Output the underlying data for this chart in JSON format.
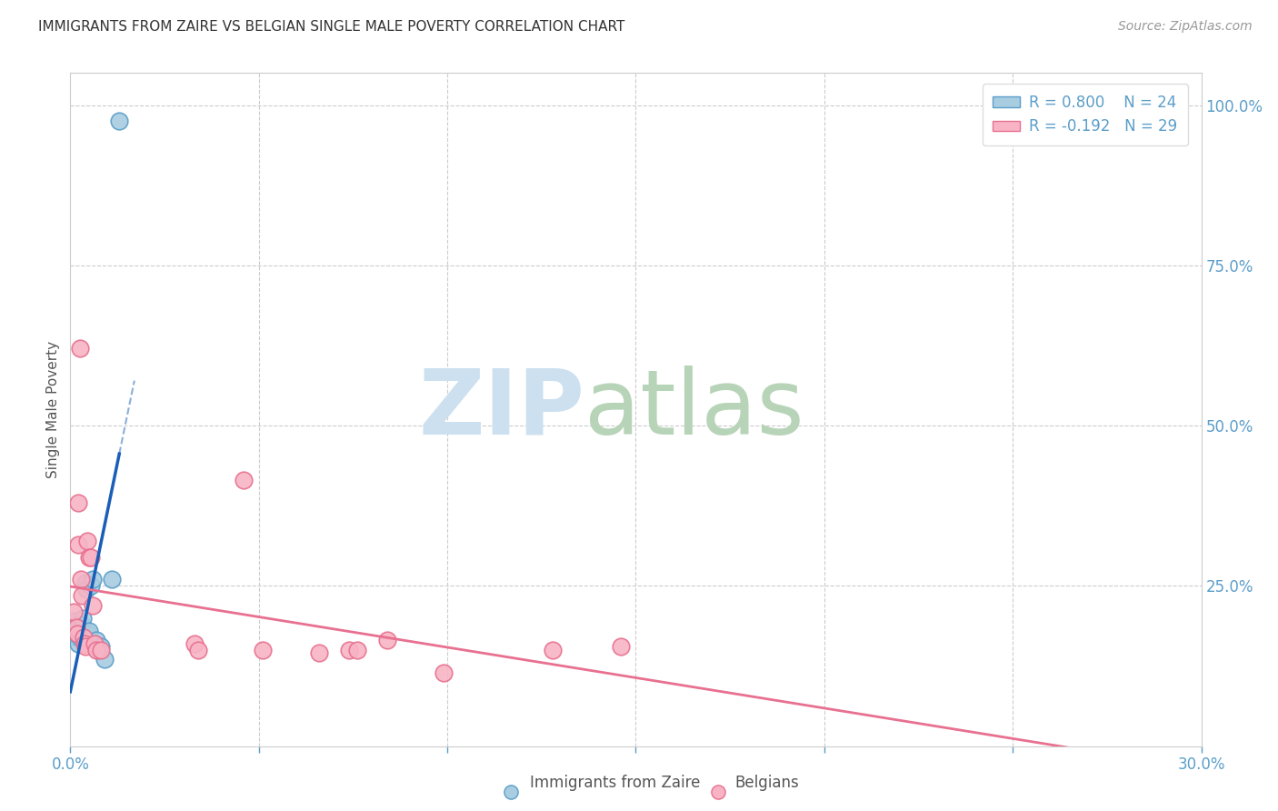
{
  "title": "IMMIGRANTS FROM ZAIRE VS BELGIAN SINGLE MALE POVERTY CORRELATION CHART",
  "source": "Source: ZipAtlas.com",
  "ylabel": "Single Male Poverty",
  "xlim": [
    0.0,
    0.3
  ],
  "ylim": [
    0.0,
    1.05
  ],
  "legend_label_zaire": "Immigrants from Zaire",
  "legend_label_belgian": "Belgians",
  "zaire_color": "#a8cce0",
  "zaire_edge": "#5b9ec9",
  "belgian_color": "#f8b4c4",
  "belgian_edge": "#e87090",
  "trendline_zaire_color": "#1a5eb8",
  "trendline_belgian_color": "#e87090",
  "background_color": "#ffffff",
  "grid_color": "#cccccc",
  "title_color": "#333333",
  "blue_tick_color": "#5b9ec9",
  "title_fontsize": 11,
  "source_fontsize": 10,
  "zaire_points": [
    [
      0.0008,
      0.185
    ],
    [
      0.0012,
      0.195
    ],
    [
      0.0015,
      0.17
    ],
    [
      0.0018,
      0.175
    ],
    [
      0.002,
      0.16
    ],
    [
      0.0022,
      0.185
    ],
    [
      0.0025,
      0.17
    ],
    [
      0.0028,
      0.18
    ],
    [
      0.003,
      0.19
    ],
    [
      0.0032,
      0.2
    ],
    [
      0.0035,
      0.17
    ],
    [
      0.004,
      0.255
    ],
    [
      0.0042,
      0.245
    ],
    [
      0.0045,
      0.175
    ],
    [
      0.005,
      0.18
    ],
    [
      0.0055,
      0.25
    ],
    [
      0.006,
      0.26
    ],
    [
      0.0065,
      0.155
    ],
    [
      0.007,
      0.165
    ],
    [
      0.0075,
      0.15
    ],
    [
      0.008,
      0.155
    ],
    [
      0.009,
      0.135
    ],
    [
      0.011,
      0.26
    ],
    [
      0.013,
      0.975
    ]
  ],
  "belgian_points": [
    [
      0.001,
      0.21
    ],
    [
      0.0015,
      0.185
    ],
    [
      0.0018,
      0.175
    ],
    [
      0.002,
      0.38
    ],
    [
      0.0022,
      0.315
    ],
    [
      0.0025,
      0.62
    ],
    [
      0.0028,
      0.26
    ],
    [
      0.003,
      0.235
    ],
    [
      0.0035,
      0.17
    ],
    [
      0.0038,
      0.16
    ],
    [
      0.004,
      0.155
    ],
    [
      0.0045,
      0.32
    ],
    [
      0.005,
      0.295
    ],
    [
      0.0055,
      0.295
    ],
    [
      0.006,
      0.22
    ],
    [
      0.0065,
      0.16
    ],
    [
      0.007,
      0.15
    ],
    [
      0.008,
      0.15
    ],
    [
      0.033,
      0.16
    ],
    [
      0.034,
      0.15
    ],
    [
      0.046,
      0.415
    ],
    [
      0.051,
      0.15
    ],
    [
      0.066,
      0.145
    ],
    [
      0.074,
      0.15
    ],
    [
      0.076,
      0.15
    ],
    [
      0.084,
      0.165
    ],
    [
      0.099,
      0.115
    ],
    [
      0.128,
      0.15
    ],
    [
      0.146,
      0.155
    ]
  ],
  "watermark_zip_color": "#cde0f0",
  "watermark_atlas_color": "#b8d4b8"
}
